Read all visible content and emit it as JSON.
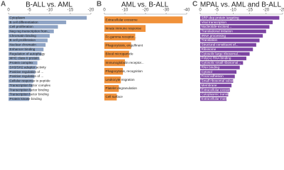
{
  "chart_data": [
    {
      "type": "bar",
      "orientation": "horizontal",
      "panel": "A",
      "title": "B-ALL vs. AML",
      "color": "#8ea3c4",
      "categories": [
        "Cytoplasm",
        "B cell differentiation",
        "Cell proliferation",
        "Neg reg transcription from...",
        "Chromatin binding",
        "B cell proliferation",
        "Nuclear chromatin",
        "Enhancer binding",
        "Regulation of autophagy",
        "MHC class II protein...",
        "Protein complex",
        "SH3/SH2 adaptor activity",
        "Positive regulation of ...",
        "Positive regulation of ...",
        "Cellular response to peptide",
        "Transcription factor complex",
        "Transcription factor binding",
        "Transcription factor binding",
        "Protein kinase binding"
      ],
      "values": [
        -19,
        -14,
        -12,
        -11,
        -10,
        -9.5,
        -9,
        -8.5,
        -8,
        -7.5,
        -7,
        -6.8,
        -6.5,
        -6.3,
        -6,
        -5.8,
        -5.5,
        -5.3,
        -5
      ],
      "xlim": [
        0,
        -20
      ],
      "xticks": [
        0,
        -5,
        -10,
        -15,
        -20
      ]
    },
    {
      "type": "bar",
      "orientation": "horizontal",
      "panel": "B",
      "title": "AML vs. B-ALL",
      "color": "#f0913a",
      "categories": [
        "Extracellular exosome",
        "Innate immune response",
        "Fc-gamma receptor...",
        "Phagocytosis, engulfment",
        "Blood microparticle",
        "Immunoglobulin receptor...",
        "Phagocytosis, recognition",
        "Leukocyte migration",
        "Platelet degranulation",
        "Cell surface"
      ],
      "values": [
        -38,
        -20,
        -15,
        -13,
        -12,
        -10,
        -9,
        -8,
        -7,
        -6
      ],
      "xlim": [
        0,
        -40
      ],
      "xticks": [
        0,
        -10,
        -20,
        -30,
        -40
      ]
    },
    {
      "type": "bar",
      "orientation": "horizontal",
      "panel": "C",
      "title": "MPAL vs. AML and B-ALL",
      "color": "#7d45a3",
      "categories": [
        "SRP-dep protein targeting",
        "Viral transcription",
        "Nucleotide-excised...",
        "Translational initiation",
        "rRNA processing",
        "Translation",
        "Structural constituent of...",
        "Ribosome",
        "Cytosolic large ribosomal...",
        "Poly(A) RNA binding",
        "Cytosolic small ribosomal...",
        "RNA binding",
        "Cytosol",
        "Focal adhesion",
        "Small ribosomal subunit",
        "Membrane",
        "Extracellular exosome",
        "Cytoplasmic translation",
        "Extracellular matrix"
      ],
      "values": [
        -24,
        -22,
        -21,
        -20,
        -19,
        -18,
        -17,
        -16,
        -15,
        -14,
        -13,
        -12,
        -11,
        -10.5,
        -10,
        -9.5,
        -9,
        -8.5,
        -8
      ],
      "xlim": [
        0,
        -25
      ],
      "xticks": [
        0,
        -5,
        -10,
        -15,
        -20,
        -25
      ]
    }
  ]
}
